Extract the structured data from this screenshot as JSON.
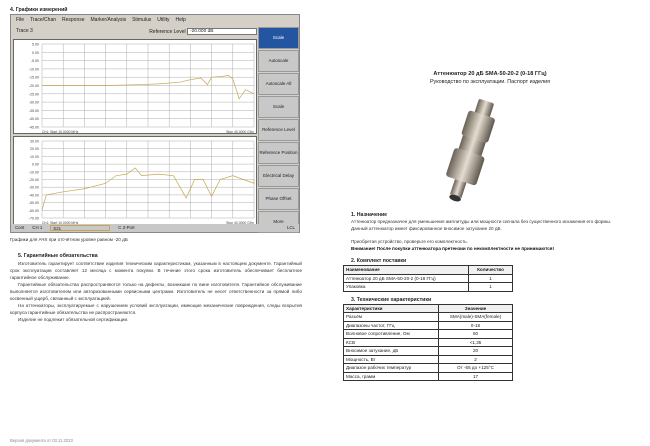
{
  "left": {
    "section4_title": "4. Графики измерений",
    "vna": {
      "menu": [
        "File",
        "Trace/Chan",
        "Response",
        "Marker/Analysis",
        "Stimulus",
        "Utility",
        "Help"
      ],
      "trace_label": "Trace 3",
      "ref_label": "Reference Level",
      "ref_value": "-20.000 dB",
      "buttons": [
        "Scale",
        "Autoscale",
        "Autoscale All",
        "Scale",
        "Reference Level",
        "Reference Position",
        "Electrical Delay",
        "Phase Offset",
        "More"
      ],
      "plot1_yticks": [
        "5.00",
        "0.00",
        "-5.00",
        "-10.00",
        "-15.00",
        "-20.00",
        "-25.00",
        "-30.00",
        "-35.00",
        "-40.00",
        "-45.00"
      ],
      "plot2_yticks": [
        "30.00",
        "20.00",
        "10.00",
        "0.00",
        "-10.00",
        "-20.00",
        "-30.00",
        "-40.00",
        "-50.00",
        "-60.00",
        "-70.00"
      ],
      "start_label": "Ch1: Start 10.0000 MHz",
      "stop_label": "Stop 40.0000 GHz",
      "status": [
        "Cont",
        "CH 1",
        "S21",
        "C 2-Port",
        "LCL"
      ],
      "trace_color": "#c8a650"
    },
    "caption": "Графики для АЧХ при отсчётном уровне равном -20 дБ",
    "section5_title": "5. Гарантийные обязательства",
    "section5_paragraphs": [
      "Изготовитель гарантирует соответствие изделия техническим характеристикам, указанным в настоящем документе. Гарантийный срок эксплуатации составляет 12 месяца с момента покупки. В течение этого срока изготовитель обеспечивает бесплатное гарантийное обслуживание.",
      "Гарантийные обязательства распространяются только на дефекты, возникшие по вине изготовителя. Гарантийное обслуживание выполняется изготовителем или авторизованными сервисными центрами. Изготовитель не несет ответственности за прямой либо косвенный ущерб, связанный с эксплуатацией.",
      "На аттенюаторы, эксплуатируемые с нарушением условий эксплуатации, имеющие механические повреждения, следы вскрытия корпуса гарантийные обязательства не распространяются.",
      "Изделие не подлежит обязательной сертификации."
    ],
    "version": "Версия документа от 03.11.2023"
  },
  "right": {
    "title": "Аттенюатор 20 дБ SMA-50-20-2 (0-18 ГГц)",
    "subtitle": "Руководство по эксплуатации. Паспорт изделия",
    "section1_title": "1. Назначение",
    "section1_p1": "Аттенюатор предназначен для уменьшения амплитуды или мощности сигнала без существенного искажения его формы.",
    "section1_p2": "Данный аттенюатор имеет фиксированное вносимое затухание 20 дБ.",
    "section1_p3": "Приобретая устройство, проверьте его комплектность.",
    "warning": "Внимание! После покупки аттенюатора претензии по некомплектности не принимаются!",
    "section2_title": "2. Комплект поставки",
    "kit_headers": [
      "Наименование",
      "Количество"
    ],
    "kit_rows": [
      [
        "Аттенюатор 20 дБ SMA-50-20-2 (0-18 ГГц)",
        "1"
      ],
      [
        "Упаковка",
        "1"
      ]
    ],
    "section3_title": "3. Технические характеристики",
    "spec_headers": [
      "Характеристики",
      "Значение"
    ],
    "spec_rows": [
      [
        "Разъём",
        "SMA(male)-SMA(female)"
      ],
      [
        "Диапазоны частот, ГГц",
        "0-18"
      ],
      [
        "Волновое сопротивление, Ом",
        "50"
      ],
      [
        "КСВ",
        "<1,35"
      ],
      [
        "Вносимое затухание, дБ",
        "20"
      ],
      [
        "Мощность, Вт",
        "2"
      ],
      [
        "Диапазон рабочих температур",
        "От -55 до +125°С"
      ],
      [
        "Масса, грамм",
        "17"
      ]
    ]
  }
}
